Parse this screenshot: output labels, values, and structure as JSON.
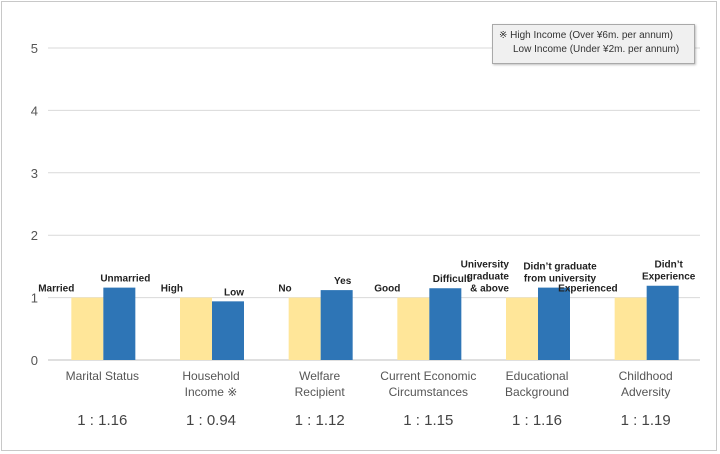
{
  "chart_data": {
    "type": "bar",
    "ylim": [
      0,
      5
    ],
    "yticks": [
      0,
      1,
      2,
      3,
      4,
      5
    ],
    "grid": true,
    "categories": [
      {
        "label_lines": [
          "Marital Status"
        ],
        "left_label": [
          "Married"
        ],
        "right_label": [
          "Unmarried"
        ],
        "values": [
          1,
          1.16
        ],
        "ratio": "1 : 1.16"
      },
      {
        "label_lines": [
          "Household",
          "Income ※"
        ],
        "left_label": [
          "High"
        ],
        "right_label": [
          "Low"
        ],
        "values": [
          1,
          0.94
        ],
        "ratio": "1 : 0.94"
      },
      {
        "label_lines": [
          "Welfare",
          "Recipient"
        ],
        "left_label": [
          "No"
        ],
        "right_label": [
          "Yes"
        ],
        "values": [
          1,
          1.12
        ],
        "ratio": "1 : 1.12"
      },
      {
        "label_lines": [
          "Current Economic",
          "Circumstances"
        ],
        "left_label": [
          "Good"
        ],
        "right_label": [
          "Difficult"
        ],
        "values": [
          1,
          1.15
        ],
        "ratio": "1 : 1.15"
      },
      {
        "label_lines": [
          "Educational",
          "Background"
        ],
        "left_label": [
          "University",
          "graduate",
          "& above"
        ],
        "right_label": [
          "Didn’t graduate",
          "from university"
        ],
        "values": [
          1,
          1.16
        ],
        "ratio": "1 : 1.16"
      },
      {
        "label_lines": [
          "Childhood",
          "Adversity"
        ],
        "left_label": [
          "Experienced"
        ],
        "right_label": [
          "Didn’t",
          "Experience"
        ],
        "values": [
          1,
          1.19
        ],
        "ratio": "1 : 1.19"
      }
    ],
    "colors": {
      "reference": "#ffe699",
      "compared": "#2e75b6",
      "grid": "#d9d9d9",
      "axis": "#bfbfbf"
    }
  },
  "note": {
    "line1": "※ High Income (Over ¥6m. per annum)",
    "line2": "Low Income (Under ¥2m. per annum)"
  }
}
